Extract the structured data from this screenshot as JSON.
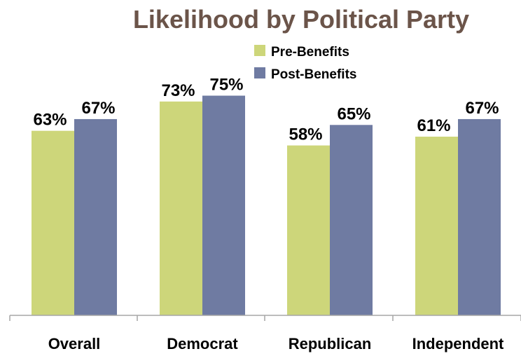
{
  "chart_data": {
    "type": "bar",
    "title": "Likelihood by Political Party",
    "xlabel": "",
    "ylabel": "",
    "categories": [
      "Overall",
      "Democrat",
      "Republican",
      "Independent"
    ],
    "series": [
      {
        "name": "Pre-Benefits",
        "values": [
          63,
          73,
          58,
          61
        ],
        "labels": [
          "63%",
          "73%",
          "58%",
          "61%"
        ],
        "color": "#cdd67a"
      },
      {
        "name": "Post-Benefits",
        "values": [
          67,
          75,
          65,
          67
        ],
        "labels": [
          "67%",
          "75%",
          "65%",
          "67%"
        ],
        "color": "#6f7ba2"
      }
    ],
    "ylim": [
      0,
      100
    ],
    "grid": false,
    "legend_position": "top-right",
    "value_unit": "%"
  }
}
